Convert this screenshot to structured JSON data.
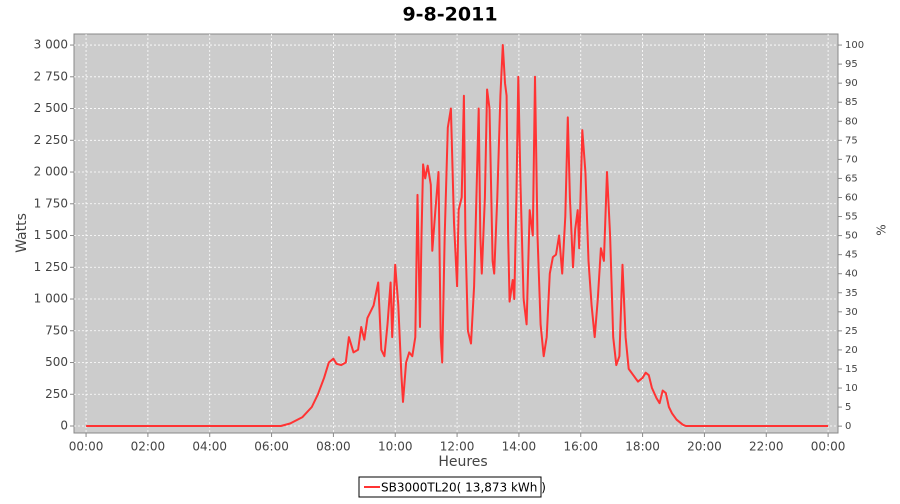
{
  "chart_data": {
    "type": "line",
    "title": "9-8-2011",
    "x_label": "Heures",
    "y_label": "Watts",
    "y2_label": "%",
    "x": [
      0,
      6.3,
      6.6,
      7.0,
      7.3,
      7.5,
      7.7,
      7.85,
      8.0,
      8.1,
      8.25,
      8.4,
      8.5,
      8.65,
      8.8,
      8.9,
      9.0,
      9.1,
      9.3,
      9.45,
      9.55,
      9.65,
      9.75,
      9.85,
      9.9,
      10.0,
      10.1,
      10.2,
      10.25,
      10.35,
      10.45,
      10.55,
      10.65,
      10.72,
      10.8,
      10.85,
      10.9,
      10.97,
      11.05,
      11.15,
      11.2,
      11.3,
      11.4,
      11.47,
      11.52,
      11.6,
      11.7,
      11.8,
      11.9,
      12.0,
      12.05,
      12.15,
      12.22,
      12.27,
      12.35,
      12.45,
      12.55,
      12.7,
      12.75,
      12.8,
      12.9,
      12.97,
      13.05,
      13.15,
      13.2,
      13.3,
      13.4,
      13.48,
      13.55,
      13.6,
      13.65,
      13.7,
      13.8,
      13.85,
      13.92,
      13.98,
      14.05,
      14.15,
      14.25,
      14.35,
      14.45,
      14.52,
      14.6,
      14.7,
      14.8,
      14.9,
      15.0,
      15.1,
      15.2,
      15.3,
      15.4,
      15.5,
      15.58,
      15.65,
      15.75,
      15.82,
      15.9,
      15.95,
      16.05,
      16.15,
      16.25,
      16.35,
      16.45,
      16.55,
      16.65,
      16.75,
      16.85,
      16.95,
      17.05,
      17.15,
      17.25,
      17.35,
      17.45,
      17.55,
      17.7,
      17.85,
      18.0,
      18.1,
      18.2,
      18.3,
      18.45,
      18.55,
      18.65,
      18.75,
      18.85,
      18.95,
      19.1,
      19.3,
      19.4,
      24
    ],
    "series": [
      {
        "name": "SB3000TL20( 13,873 kWh )",
        "color": "#ff3333",
        "values": [
          0,
          0,
          20,
          70,
          150,
          250,
          380,
          500,
          530,
          490,
          480,
          500,
          700,
          580,
          600,
          780,
          680,
          850,
          950,
          1130,
          600,
          550,
          800,
          1130,
          700,
          1270,
          950,
          400,
          190,
          500,
          580,
          550,
          700,
          1820,
          780,
          1500,
          2060,
          1950,
          2050,
          1900,
          1380,
          1700,
          2000,
          700,
          500,
          1500,
          2350,
          2500,
          1600,
          1100,
          1700,
          1800,
          2600,
          1500,
          750,
          650,
          1100,
          2500,
          1500,
          1200,
          1800,
          2650,
          2500,
          1300,
          1200,
          1800,
          2600,
          3000,
          2700,
          2600,
          1500,
          980,
          1150,
          1000,
          1800,
          2750,
          1900,
          1000,
          800,
          1700,
          1500,
          2750,
          1500,
          800,
          550,
          700,
          1200,
          1330,
          1350,
          1500,
          1200,
          1650,
          2430,
          1800,
          1250,
          1550,
          1700,
          1400,
          2330,
          2000,
          1300,
          950,
          700,
          1000,
          1400,
          1300,
          2000,
          1500,
          700,
          480,
          550,
          1270,
          700,
          450,
          400,
          350,
          380,
          420,
          400,
          300,
          220,
          180,
          280,
          260,
          150,
          100,
          50,
          10,
          0,
          0
        ]
      }
    ],
    "xlim": [
      -0.39,
      24.32
    ],
    "xticks": [
      {
        "value": 0,
        "label": "00:00"
      },
      {
        "value": 2,
        "label": "02:00"
      },
      {
        "value": 4,
        "label": "04:00"
      },
      {
        "value": 6,
        "label": "06:00"
      },
      {
        "value": 8,
        "label": "08:00"
      },
      {
        "value": 10,
        "label": "10:00"
      },
      {
        "value": 12,
        "label": "12:00"
      },
      {
        "value": 14,
        "label": "14:00"
      },
      {
        "value": 16,
        "label": "16:00"
      },
      {
        "value": 18,
        "label": "18:00"
      },
      {
        "value": 20,
        "label": "20:00"
      },
      {
        "value": 22,
        "label": "22:00"
      },
      {
        "value": 24,
        "label": "00:00"
      }
    ],
    "ylim": [
      -55,
      3087
    ],
    "yticks": [
      0,
      250,
      500,
      750,
      {
        "value": 1000,
        "label": "1 000"
      },
      {
        "value": 1250,
        "label": "1 250"
      },
      {
        "value": 1500,
        "label": "1 500"
      },
      {
        "value": 1750,
        "label": "1 750"
      },
      {
        "value": 2000,
        "label": "2 000"
      },
      {
        "value": 2250,
        "label": "2 250"
      },
      {
        "value": 2500,
        "label": "2 500"
      },
      {
        "value": 2750,
        "label": "2 750"
      },
      {
        "value": 3000,
        "label": "3 000"
      }
    ],
    "y2lim": [
      -1.8,
      102.9
    ],
    "y2ticks": [
      0,
      5,
      10,
      15,
      20,
      25,
      30,
      35,
      40,
      45,
      50,
      55,
      60,
      65,
      70,
      75,
      80,
      85,
      90,
      95,
      100
    ],
    "grid": true,
    "background": "#cccccc"
  }
}
